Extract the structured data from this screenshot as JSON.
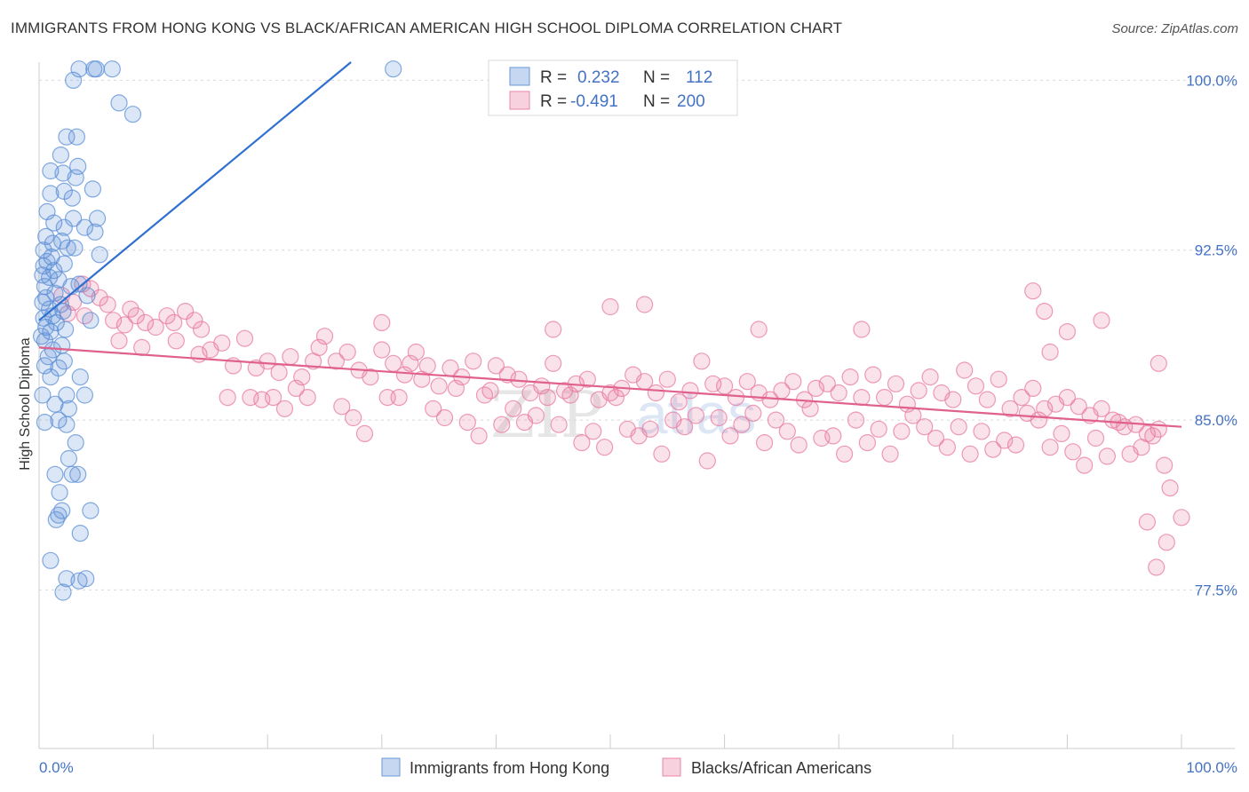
{
  "title": "IMMIGRANTS FROM HONG KONG VS BLACK/AFRICAN AMERICAN HIGH SCHOOL DIPLOMA CORRELATION CHART",
  "source": "Source: ZipAtlas.com",
  "watermark": {
    "zip": "ZIP",
    "atlas": "atlas"
  },
  "legend": {
    "rows": [
      {
        "r_label": "R =",
        "r_value": "0.232",
        "n_label": "N =",
        "n_value": "112",
        "color": "#5b8fd6"
      },
      {
        "r_label": "R =",
        "r_value": "-0.491",
        "n_label": "N =",
        "n_value": "200",
        "color": "#e87aa0"
      }
    ]
  },
  "bottom_legend": {
    "items": [
      {
        "label": "Immigrants from Hong Kong",
        "color": "#5b8fd6"
      },
      {
        "label": "Blacks/African Americans",
        "color": "#e87aa0"
      }
    ]
  },
  "chart_data": {
    "type": "scatter",
    "title": "IMMIGRANTS FROM HONG KONG VS BLACK/AFRICAN AMERICAN HIGH SCHOOL DIPLOMA CORRELATION CHART",
    "xlabel": "",
    "ylabel": "High School Diploma",
    "xlim": [
      0,
      100
    ],
    "ylim": [
      70.5,
      100.8
    ],
    "x_tick_labels": [
      "0.0%",
      "100.0%"
    ],
    "y_ticks": [
      77.5,
      85.0,
      92.5,
      100.0
    ],
    "y_tick_labels": [
      "77.5%",
      "85.0%",
      "92.5%",
      "100.0%"
    ],
    "grid": true,
    "legend_position": "top-center",
    "series": [
      {
        "name": "Immigrants from Hong Kong",
        "color": "#5b8fd6",
        "r": 0.232,
        "n": 112,
        "trend": {
          "x": [
            0.0,
            27.3
          ],
          "y": [
            89.4,
            100.8
          ]
        },
        "points": [
          [
            3.5,
            100.5
          ],
          [
            4.8,
            100.5
          ],
          [
            5.0,
            100.5
          ],
          [
            6.4,
            100.5
          ],
          [
            31.0,
            100.5
          ],
          [
            3.0,
            100.0
          ],
          [
            7.0,
            99.0
          ],
          [
            8.2,
            98.5
          ],
          [
            2.4,
            97.5
          ],
          [
            3.3,
            97.5
          ],
          [
            1.9,
            96.7
          ],
          [
            3.4,
            96.2
          ],
          [
            1.0,
            96.0
          ],
          [
            2.1,
            95.9
          ],
          [
            3.2,
            95.7
          ],
          [
            4.7,
            95.2
          ],
          [
            1.0,
            95.0
          ],
          [
            2.2,
            95.1
          ],
          [
            2.9,
            94.8
          ],
          [
            0.7,
            94.2
          ],
          [
            3.0,
            93.9
          ],
          [
            5.1,
            93.9
          ],
          [
            1.3,
            93.7
          ],
          [
            2.2,
            93.5
          ],
          [
            4.0,
            93.5
          ],
          [
            4.9,
            93.3
          ],
          [
            0.6,
            93.1
          ],
          [
            2.0,
            92.9
          ],
          [
            1.2,
            92.8
          ],
          [
            2.5,
            92.6
          ],
          [
            0.4,
            92.5
          ],
          [
            3.1,
            92.6
          ],
          [
            5.3,
            92.3
          ],
          [
            1.1,
            92.2
          ],
          [
            0.7,
            92.0
          ],
          [
            2.2,
            91.9
          ],
          [
            0.4,
            91.8
          ],
          [
            1.3,
            91.6
          ],
          [
            0.3,
            91.4
          ],
          [
            0.9,
            91.3
          ],
          [
            1.7,
            91.2
          ],
          [
            3.5,
            91.0
          ],
          [
            0.5,
            90.9
          ],
          [
            2.8,
            90.9
          ],
          [
            1.4,
            90.6
          ],
          [
            0.6,
            90.4
          ],
          [
            4.2,
            90.5
          ],
          [
            0.3,
            90.2
          ],
          [
            1.9,
            90.1
          ],
          [
            0.9,
            89.9
          ],
          [
            2.1,
            89.8
          ],
          [
            1.2,
            89.6
          ],
          [
            0.4,
            89.5
          ],
          [
            1.5,
            89.3
          ],
          [
            4.5,
            89.4
          ],
          [
            0.6,
            89.1
          ],
          [
            2.3,
            89.0
          ],
          [
            1.0,
            88.9
          ],
          [
            0.2,
            88.7
          ],
          [
            0.5,
            88.5
          ],
          [
            2.0,
            88.3
          ],
          [
            1.2,
            88.1
          ],
          [
            0.8,
            87.8
          ],
          [
            2.2,
            87.6
          ],
          [
            0.5,
            87.4
          ],
          [
            1.7,
            87.3
          ],
          [
            1.0,
            86.9
          ],
          [
            3.6,
            86.9
          ],
          [
            2.4,
            86.1
          ],
          [
            4.0,
            86.1
          ],
          [
            0.3,
            86.1
          ],
          [
            1.4,
            85.7
          ],
          [
            2.6,
            85.5
          ],
          [
            0.5,
            84.9
          ],
          [
            1.7,
            85.0
          ],
          [
            2.4,
            84.8
          ],
          [
            3.2,
            84.0
          ],
          [
            2.6,
            83.3
          ],
          [
            1.4,
            82.6
          ],
          [
            2.9,
            82.6
          ],
          [
            3.4,
            82.6
          ],
          [
            1.8,
            81.8
          ],
          [
            2.0,
            81.0
          ],
          [
            4.5,
            81.0
          ],
          [
            1.5,
            80.6
          ],
          [
            1.7,
            80.8
          ],
          [
            3.6,
            80.0
          ],
          [
            1.0,
            78.8
          ],
          [
            2.4,
            78.0
          ],
          [
            3.5,
            77.9
          ],
          [
            4.1,
            78.0
          ],
          [
            2.1,
            77.4
          ]
        ]
      },
      {
        "name": "Blacks/African Americans",
        "color": "#e87aa0",
        "r": -0.491,
        "n": 200,
        "trend": {
          "x": [
            0.0,
            100.0
          ],
          "y": [
            88.2,
            84.7
          ]
        },
        "points": [
          [
            2.0,
            90.5
          ],
          [
            3.0,
            90.2
          ],
          [
            3.8,
            91.0
          ],
          [
            4.5,
            90.8
          ],
          [
            5.3,
            90.4
          ],
          [
            2.5,
            89.7
          ],
          [
            4.0,
            89.6
          ],
          [
            6.0,
            90.1
          ],
          [
            6.5,
            89.4
          ],
          [
            7.5,
            89.2
          ],
          [
            8.0,
            89.9
          ],
          [
            8.5,
            89.6
          ],
          [
            9.3,
            89.3
          ],
          [
            10.2,
            89.1
          ],
          [
            11.2,
            89.6
          ],
          [
            11.8,
            89.3
          ],
          [
            12.8,
            89.8
          ],
          [
            13.6,
            89.4
          ],
          [
            14.2,
            89.0
          ],
          [
            7.0,
            88.5
          ],
          [
            15.0,
            88.1
          ],
          [
            16.0,
            88.4
          ],
          [
            17.0,
            87.4
          ],
          [
            18.0,
            88.6
          ],
          [
            19.0,
            87.3
          ],
          [
            20.0,
            87.6
          ],
          [
            21.0,
            87.1
          ],
          [
            22.0,
            87.8
          ],
          [
            23.0,
            86.9
          ],
          [
            24.0,
            87.6
          ],
          [
            25.0,
            88.7
          ],
          [
            26.0,
            87.6
          ],
          [
            27.0,
            88.0
          ],
          [
            28.0,
            87.2
          ],
          [
            29.0,
            86.9
          ],
          [
            30.0,
            88.1
          ],
          [
            31.0,
            87.5
          ],
          [
            32.0,
            87.0
          ],
          [
            33.0,
            88.0
          ],
          [
            34.0,
            87.4
          ],
          [
            35.0,
            86.5
          ],
          [
            36.0,
            87.3
          ],
          [
            37.0,
            86.9
          ],
          [
            38.0,
            87.6
          ],
          [
            39.0,
            86.1
          ],
          [
            40.0,
            87.4
          ],
          [
            41.0,
            87.0
          ],
          [
            42.0,
            86.8
          ],
          [
            43.0,
            86.2
          ],
          [
            44.0,
            86.5
          ],
          [
            45.0,
            87.5
          ],
          [
            46.0,
            86.3
          ],
          [
            47.0,
            86.6
          ],
          [
            48.0,
            86.8
          ],
          [
            49.0,
            85.9
          ],
          [
            50.0,
            86.2
          ],
          [
            51.0,
            86.4
          ],
          [
            52.0,
            87.0
          ],
          [
            53.0,
            86.7
          ],
          [
            54.0,
            86.2
          ],
          [
            55.0,
            86.8
          ],
          [
            56.0,
            85.8
          ],
          [
            57.0,
            86.3
          ],
          [
            58.0,
            87.6
          ],
          [
            59.0,
            86.6
          ],
          [
            60.0,
            86.5
          ],
          [
            61.0,
            86.0
          ],
          [
            62.0,
            86.7
          ],
          [
            63.0,
            86.2
          ],
          [
            64.0,
            85.9
          ],
          [
            65.0,
            86.3
          ],
          [
            66.0,
            86.7
          ],
          [
            67.0,
            85.9
          ],
          [
            68.0,
            86.4
          ],
          [
            69.0,
            86.6
          ],
          [
            70.0,
            86.2
          ],
          [
            71.0,
            86.9
          ],
          [
            72.0,
            86.0
          ],
          [
            73.0,
            87.0
          ],
          [
            74.0,
            86.0
          ],
          [
            75.0,
            86.6
          ],
          [
            76.0,
            85.7
          ],
          [
            77.0,
            86.3
          ],
          [
            78.0,
            86.9
          ],
          [
            79.0,
            86.2
          ],
          [
            80.0,
            85.9
          ],
          [
            81.0,
            87.2
          ],
          [
            82.0,
            86.5
          ],
          [
            83.0,
            85.9
          ],
          [
            84.0,
            86.8
          ],
          [
            85.0,
            85.5
          ],
          [
            86.0,
            86.0
          ],
          [
            87.0,
            86.4
          ],
          [
            88.0,
            85.5
          ],
          [
            89.0,
            85.7
          ],
          [
            90.0,
            86.0
          ],
          [
            91.0,
            85.6
          ],
          [
            92.0,
            85.2
          ],
          [
            93.0,
            85.5
          ],
          [
            94.0,
            85.0
          ],
          [
            95.0,
            84.7
          ],
          [
            96.0,
            84.8
          ],
          [
            97.0,
            84.4
          ],
          [
            98.0,
            84.6
          ],
          [
            9.0,
            88.2
          ],
          [
            12.0,
            88.5
          ],
          [
            14.0,
            87.9
          ],
          [
            16.5,
            86.0
          ],
          [
            18.5,
            86.0
          ],
          [
            19.5,
            85.9
          ],
          [
            20.5,
            86.0
          ],
          [
            21.5,
            85.5
          ],
          [
            22.5,
            86.4
          ],
          [
            23.5,
            86.0
          ],
          [
            24.5,
            88.2
          ],
          [
            26.5,
            85.6
          ],
          [
            27.5,
            85.1
          ],
          [
            28.5,
            84.4
          ],
          [
            30.5,
            86.0
          ],
          [
            31.5,
            86.0
          ],
          [
            32.5,
            87.5
          ],
          [
            33.5,
            86.8
          ],
          [
            34.5,
            85.5
          ],
          [
            35.5,
            85.1
          ],
          [
            36.5,
            86.4
          ],
          [
            37.5,
            84.9
          ],
          [
            38.5,
            84.3
          ],
          [
            39.5,
            86.3
          ],
          [
            40.5,
            84.8
          ],
          [
            41.5,
            85.5
          ],
          [
            42.5,
            84.9
          ],
          [
            43.5,
            85.2
          ],
          [
            44.5,
            86.0
          ],
          [
            45.5,
            84.8
          ],
          [
            46.5,
            86.1
          ],
          [
            47.5,
            84.0
          ],
          [
            48.5,
            84.5
          ],
          [
            49.5,
            83.8
          ],
          [
            50.5,
            86.0
          ],
          [
            51.5,
            84.6
          ],
          [
            52.5,
            84.3
          ],
          [
            53.5,
            84.6
          ],
          [
            54.5,
            83.5
          ],
          [
            55.5,
            85.0
          ],
          [
            56.5,
            84.7
          ],
          [
            57.5,
            85.2
          ],
          [
            58.5,
            83.2
          ],
          [
            59.5,
            85.1
          ],
          [
            60.5,
            84.3
          ],
          [
            61.5,
            84.8
          ],
          [
            62.5,
            85.3
          ],
          [
            63.5,
            84.0
          ],
          [
            64.5,
            85.0
          ],
          [
            65.5,
            84.5
          ],
          [
            66.5,
            83.9
          ],
          [
            67.5,
            85.5
          ],
          [
            68.5,
            84.2
          ],
          [
            69.5,
            84.3
          ],
          [
            70.5,
            83.5
          ],
          [
            71.5,
            85.0
          ],
          [
            72.5,
            84.0
          ],
          [
            73.5,
            84.6
          ],
          [
            74.5,
            83.5
          ],
          [
            75.5,
            84.5
          ],
          [
            76.5,
            85.2
          ],
          [
            77.5,
            84.7
          ],
          [
            78.5,
            84.2
          ],
          [
            79.5,
            83.8
          ],
          [
            80.5,
            84.7
          ],
          [
            81.5,
            83.5
          ],
          [
            82.5,
            84.5
          ],
          [
            83.5,
            83.7
          ],
          [
            84.5,
            84.1
          ],
          [
            85.5,
            83.9
          ],
          [
            86.5,
            85.3
          ],
          [
            87.5,
            85.0
          ],
          [
            88.5,
            83.8
          ],
          [
            89.5,
            84.4
          ],
          [
            90.5,
            83.6
          ],
          [
            91.5,
            83.0
          ],
          [
            92.5,
            84.2
          ],
          [
            93.5,
            83.4
          ],
          [
            94.5,
            84.9
          ],
          [
            95.5,
            83.5
          ],
          [
            96.5,
            83.8
          ],
          [
            97.5,
            84.3
          ],
          [
            98.5,
            83.0
          ],
          [
            99.0,
            82.0
          ],
          [
            97.0,
            80.5
          ],
          [
            98.7,
            79.6
          ],
          [
            97.8,
            78.5
          ],
          [
            100.0,
            80.7
          ],
          [
            30.0,
            89.3
          ],
          [
            45.0,
            89.0
          ],
          [
            50.0,
            90.0
          ],
          [
            53.0,
            90.1
          ],
          [
            63.0,
            89.0
          ],
          [
            72.0,
            89.0
          ],
          [
            87.0,
            90.7
          ],
          [
            88.0,
            89.8
          ],
          [
            90.0,
            88.9
          ],
          [
            93.0,
            89.4
          ],
          [
            98.0,
            87.5
          ],
          [
            88.5,
            88.0
          ]
        ]
      }
    ]
  }
}
